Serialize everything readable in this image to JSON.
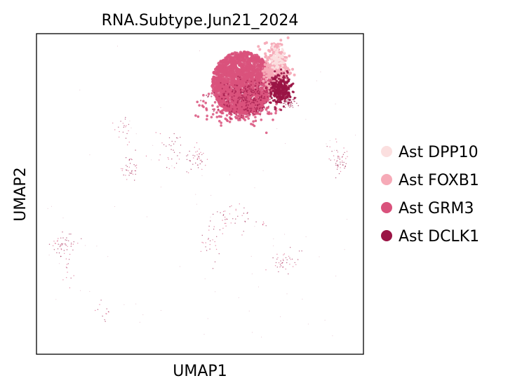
{
  "chart_data": {
    "type": "scatter",
    "title": "RNA.Subtype.Jun21_2024",
    "xlabel": "UMAP1",
    "ylabel": "UMAP2",
    "grid": false,
    "legend_position": "right",
    "series": [
      {
        "name": "Ast DPP10",
        "color": "#fbdfdf"
      },
      {
        "name": "Ast FOXB1",
        "color": "#f6aab7"
      },
      {
        "name": "Ast GRM3",
        "color": "#d9527c"
      },
      {
        "name": "Ast DCLK1",
        "color": "#9a1445"
      }
    ]
  }
}
